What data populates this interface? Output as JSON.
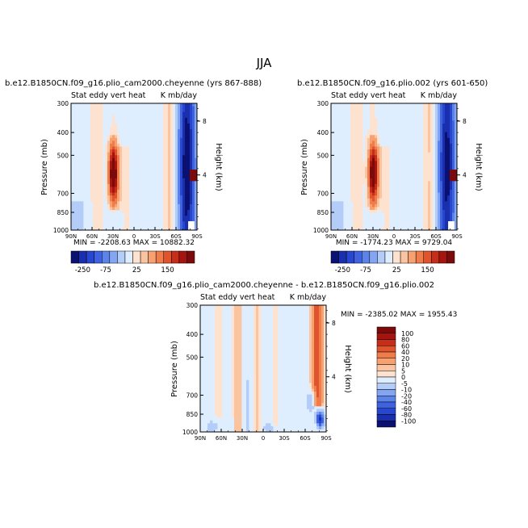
{
  "figure_title": "JJA",
  "chart_data": [
    {
      "type": "heatmap",
      "id": "p1",
      "title": "b.e12.B1850CN.f09_g16.plio_cam2000.cheyenne (yrs 867-888)",
      "left_label": "Stat eddy vert heat",
      "right_label": "K mb/day",
      "ylabel": "Pressure (mb)",
      "ylabel_right": "Height (km)",
      "xticks": [
        "90N",
        "60N",
        "30N",
        "0",
        "30S",
        "60S",
        "90S"
      ],
      "yticks": [
        "300",
        "400",
        "500",
        "700",
        "850",
        "1000"
      ],
      "height_ticks": [
        "8",
        "4"
      ],
      "stats": "MIN = -2208.63   MAX = 10882.32",
      "colorbar_ticks": [
        "-250",
        "-75",
        "25",
        "150"
      ],
      "colorbar_colors": [
        "#0a1172",
        "#1a2fae",
        "#2847d0",
        "#3f63e0",
        "#5b83ea",
        "#84a6f2",
        "#b4cdf8",
        "#dfeeff",
        "#fde3cf",
        "#fbc4a0",
        "#f7a070",
        "#f07c4c",
        "#e0542d",
        "#c72e1a",
        "#a61410",
        "#7d0a0a"
      ],
      "field": {
        "pos": 0.22,
        "neg": 0.2,
        "pos_core": 0.9,
        "neg_core": 0.95
      }
    },
    {
      "type": "heatmap",
      "id": "p2",
      "title": "b.e12.B1850CN.f09_g16.plio.002 (yrs 601-650)",
      "left_label": "Stat eddy vert heat",
      "right_label": "K mb/day",
      "ylabel": "Pressure (mb)",
      "ylabel_right": "Height (km)",
      "xticks": [
        "90N",
        "60N",
        "30N",
        "0",
        "30S",
        "60S",
        "90S"
      ],
      "yticks": [
        "300",
        "400",
        "500",
        "700",
        "850",
        "1000"
      ],
      "height_ticks": [
        "8",
        "4"
      ],
      "stats": "MIN = -1774.23   MAX = 9729.04",
      "colorbar_ticks": [
        "-250",
        "-75",
        "25",
        "150"
      ],
      "colorbar_colors": [
        "#0a1172",
        "#1a2fae",
        "#2847d0",
        "#3f63e0",
        "#5b83ea",
        "#84a6f2",
        "#b4cdf8",
        "#dfeeff",
        "#fde3cf",
        "#fbc4a0",
        "#f7a070",
        "#f07c4c",
        "#e0542d",
        "#c72e1a",
        "#a61410",
        "#7d0a0a"
      ],
      "field": {
        "pos": 0.22,
        "neg": 0.2,
        "pos_core": 0.9,
        "neg_core": 0.95
      }
    },
    {
      "type": "heatmap",
      "id": "p3",
      "title": "b.e12.B1850CN.f09_g16.plio_cam2000.cheyenne - b.e12.B1850CN.f09_g16.plio.002",
      "left_label": "Stat eddy vert heat",
      "right_label": "K mb/day",
      "ylabel": "Pressure (mb)",
      "ylabel_right": "Height (km)",
      "xticks": [
        "90N",
        "60N",
        "30N",
        "0",
        "30S",
        "60S",
        "90S"
      ],
      "yticks": [
        "300",
        "400",
        "500",
        "700",
        "850",
        "1000"
      ],
      "height_ticks": [
        "8",
        "4"
      ],
      "stats": "MIN = -2385.02   MAX = 1955.43",
      "colorbar_ticks": [
        "100",
        "80",
        "60",
        "40",
        "20",
        "10",
        "5",
        "0",
        "-5",
        "-10",
        "-20",
        "-40",
        "-60",
        "-80",
        "-100"
      ],
      "colorbar_colors": [
        "#7d0a0a",
        "#a61410",
        "#c72e1a",
        "#e0542d",
        "#f07c4c",
        "#f7a070",
        "#fbc4a0",
        "#fde3cf",
        "#dfeeff",
        "#b4cdf8",
        "#84a6f2",
        "#5b83ea",
        "#3f63e0",
        "#2847d0",
        "#1a2fae",
        "#0a1172"
      ]
    }
  ]
}
